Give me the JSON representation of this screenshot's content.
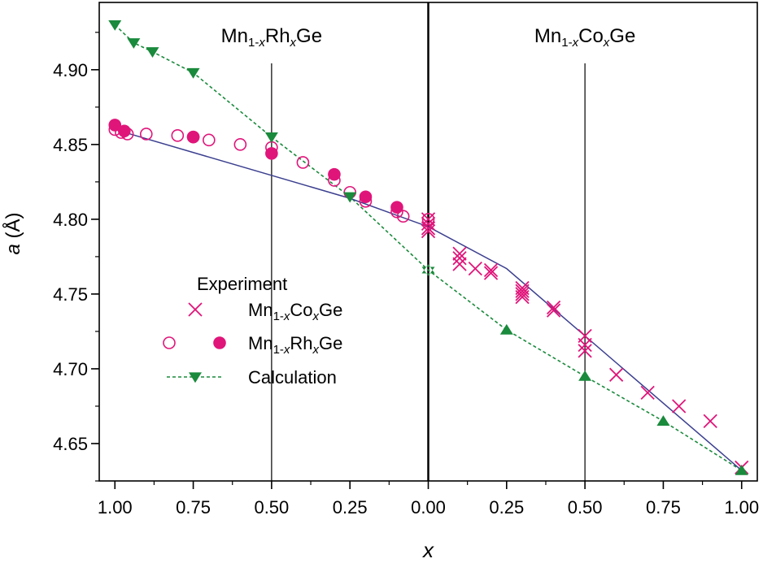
{
  "chart_data": {
    "type": "scatter",
    "xlabel": "x",
    "ylabel_italic": "a",
    "ylabel_rest": " (Å)",
    "ylim": [
      4.625,
      4.945
    ],
    "yticks": [
      4.65,
      4.7,
      4.75,
      4.8,
      4.85,
      4.9
    ],
    "ytick_labels": [
      "4.65",
      "4.70",
      "4.75",
      "4.80",
      "4.85",
      "4.90"
    ],
    "xlim": [
      -1.05,
      1.05
    ],
    "xticks": [
      -1.0,
      -0.75,
      -0.5,
      -0.25,
      0.0,
      0.25,
      0.5,
      0.75,
      1.0
    ],
    "xtick_labels": [
      "1.00",
      "0.75",
      "0.50",
      "0.25",
      "0.00",
      "0.25",
      "0.50",
      "0.75",
      "1.00"
    ],
    "vertical_lines": [
      -0.5,
      0.0,
      0.5
    ],
    "panels": [
      {
        "side": "left",
        "base": "Mn",
        "sub1": "1-",
        "sub1_italic": "x",
        "el2": "Rh",
        "sub2_italic": "x",
        "el3": "Ge"
      },
      {
        "side": "right",
        "base": "Mn",
        "sub1": "1-",
        "sub1_italic": "x",
        "el2": "Co",
        "sub2_italic": "x",
        "el3": "Ge"
      }
    ],
    "legend": {
      "title": "Experiment",
      "entries": [
        {
          "marker": "cross",
          "base": "Mn",
          "sub1": "1-",
          "sub1_italic": "x",
          "el2": "Co",
          "sub2_italic": "x",
          "el3": "Ge"
        },
        {
          "marker": "circle-open-filled",
          "base": "Mn",
          "sub1": "1-",
          "sub1_italic": "x",
          "el2": "Rh",
          "sub2_italic": "x",
          "el3": "Ge"
        },
        {
          "marker": "triangle-line",
          "label": "Calculation"
        }
      ]
    },
    "colors": {
      "experiment": "#e0157a",
      "calculation": "#1a8a3c",
      "fit_line": "#3b3f8f",
      "axis": "#000000"
    },
    "series": [
      {
        "name": "Mn1-xCoxGe (cross)",
        "marker": "cross",
        "points": [
          [
            0.0,
            4.8
          ],
          [
            0.0,
            4.797
          ],
          [
            0.0,
            4.794
          ],
          [
            0.0,
            4.792
          ],
          [
            0.1,
            4.777
          ],
          [
            0.1,
            4.774
          ],
          [
            0.1,
            4.77
          ],
          [
            0.15,
            4.767
          ],
          [
            0.2,
            4.766
          ],
          [
            0.2,
            4.764
          ],
          [
            0.3,
            4.754
          ],
          [
            0.3,
            4.752
          ],
          [
            0.3,
            4.75
          ],
          [
            0.3,
            4.748
          ],
          [
            0.4,
            4.741
          ],
          [
            0.4,
            4.739
          ],
          [
            0.5,
            4.722
          ],
          [
            0.5,
            4.716
          ],
          [
            0.5,
            4.712
          ],
          [
            0.6,
            4.696
          ],
          [
            0.7,
            4.684
          ],
          [
            0.8,
            4.675
          ],
          [
            0.9,
            4.665
          ],
          [
            1.0,
            4.634
          ]
        ]
      },
      {
        "name": "Mn1-xRhxGe (open)",
        "marker": "circle-open",
        "points": [
          [
            -1.0,
            4.86
          ],
          [
            -0.98,
            4.858
          ],
          [
            -0.96,
            4.857
          ],
          [
            -0.9,
            4.857
          ],
          [
            -0.8,
            4.856
          ],
          [
            -0.75,
            4.855
          ],
          [
            -0.7,
            4.853
          ],
          [
            -0.6,
            4.85
          ],
          [
            -0.5,
            4.848
          ],
          [
            -0.4,
            4.838
          ],
          [
            -0.3,
            4.826
          ],
          [
            -0.25,
            4.818
          ],
          [
            -0.2,
            4.812
          ],
          [
            -0.1,
            4.805
          ],
          [
            -0.08,
            4.802
          ],
          [
            0.0,
            4.8
          ]
        ]
      },
      {
        "name": "Mn1-xRhxGe (filled)",
        "marker": "circle-filled",
        "points": [
          [
            -1.0,
            4.863
          ],
          [
            -0.97,
            4.859
          ],
          [
            -0.75,
            4.855
          ],
          [
            -0.5,
            4.844
          ],
          [
            -0.3,
            4.83
          ],
          [
            -0.2,
            4.815
          ],
          [
            -0.1,
            4.808
          ]
        ]
      },
      {
        "name": "Calculation",
        "marker": "triangle",
        "line": "dotted",
        "points": [
          [
            -1.0,
            4.93,
            "down"
          ],
          [
            -0.94,
            4.918,
            "down"
          ],
          [
            -0.88,
            4.912,
            "down"
          ],
          [
            -0.75,
            4.898,
            "down"
          ],
          [
            -0.5,
            4.855,
            "down"
          ],
          [
            -0.25,
            4.815,
            "down"
          ],
          [
            0.0,
            4.766,
            "star"
          ],
          [
            0.25,
            4.726,
            "up"
          ],
          [
            0.5,
            4.695,
            "up"
          ],
          [
            0.75,
            4.665,
            "up"
          ],
          [
            1.0,
            4.632,
            "up"
          ]
        ]
      },
      {
        "name": "Fit line",
        "marker": "none",
        "line": "solid",
        "points": [
          [
            -1.0,
            4.86
          ],
          [
            -0.25,
            4.814
          ],
          [
            0.0,
            4.795
          ],
          [
            0.25,
            4.767
          ],
          [
            1.0,
            4.632
          ]
        ]
      }
    ]
  }
}
